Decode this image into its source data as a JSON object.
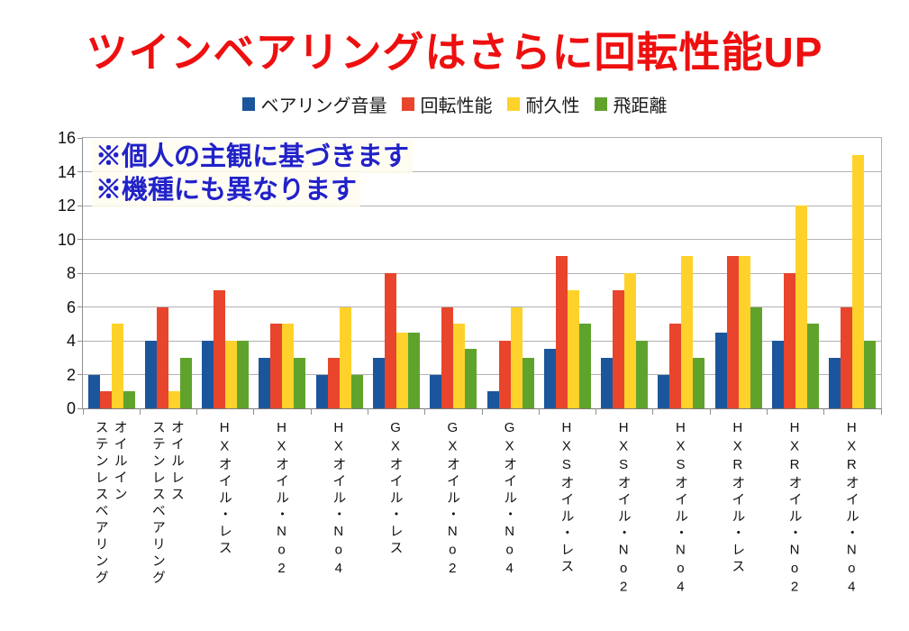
{
  "title": {
    "text": "ツインベアリングはさらに回転性能UP",
    "color": "#ee0f0f"
  },
  "annotations": {
    "line1": "※個人の主観に基づきます",
    "line2": "※機種にも異なります",
    "color": "#2222c8"
  },
  "chart_data": {
    "type": "bar",
    "title": "ツインベアリングはさらに回転性能UP",
    "categories": [
      "オイルイン\nステンレスベアリング",
      "オイルレス\nステンレスベアリング",
      "HXオイル・レス",
      "HXオイル・No2",
      "HXオイル・No4",
      "GXオイル・レス",
      "GXオイル・No2",
      "GXオイル・No4",
      "HXSオイル・レス",
      "HXSオイル・No2",
      "HXSオイル・No4",
      "HXRオイル・レス",
      "HXRオイル・No2",
      "HXRオイル・No4"
    ],
    "series": [
      {
        "name": "ベアリング音量",
        "color": "#1b569c",
        "values": [
          2,
          4,
          4,
          3,
          2,
          3,
          2,
          1,
          3.5,
          3,
          2,
          4.5,
          4,
          3
        ]
      },
      {
        "name": "回転性能",
        "color": "#e8452c",
        "values": [
          1,
          6,
          7,
          5,
          3,
          8,
          6,
          4,
          9,
          7,
          5,
          9,
          8,
          6
        ]
      },
      {
        "name": "耐久性",
        "color": "#ffd22b",
        "values": [
          5,
          1,
          4,
          5,
          6,
          4.5,
          5,
          6,
          7,
          8,
          9,
          9,
          12,
          15
        ]
      },
      {
        "name": "飛距離",
        "color": "#5fa32c",
        "values": [
          1,
          3,
          4,
          3,
          2,
          4.5,
          3.5,
          3,
          5,
          4,
          3,
          6,
          5,
          4
        ]
      }
    ],
    "xlabel": "",
    "ylabel": "",
    "ylim": [
      0,
      16
    ],
    "yticks": [
      0,
      2,
      4,
      6,
      8,
      10,
      12,
      14,
      16
    ],
    "grid": true,
    "legend_position": "top"
  }
}
